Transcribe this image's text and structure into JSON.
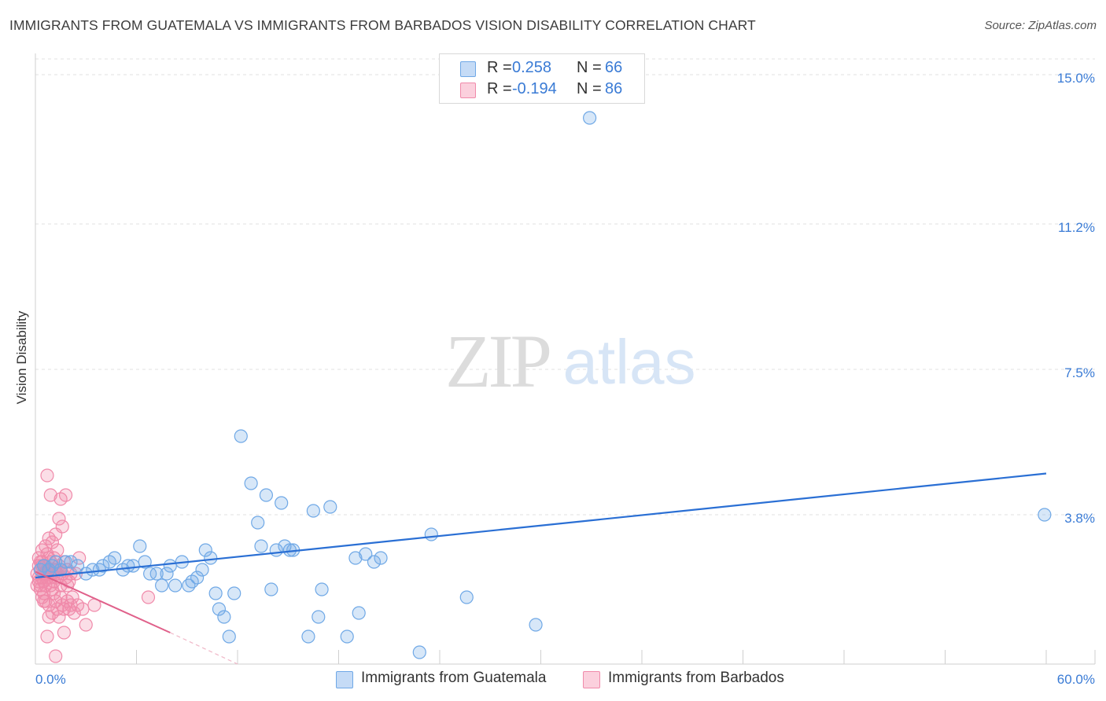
{
  "title": "IMMIGRANTS FROM GUATEMALA VS IMMIGRANTS FROM BARBADOS VISION DISABILITY CORRELATION CHART",
  "source": "Source: ZipAtlas.com",
  "watermark": {
    "zip": "ZIP",
    "atlas": "atlas"
  },
  "legend": {
    "r_label": "R =",
    "n_label": "N =",
    "series": [
      {
        "name": "Immigrants from Guatemala",
        "r": "0.258",
        "n": "66"
      },
      {
        "name": "Immigrants from Barbados",
        "r": "-0.194",
        "n": "86"
      }
    ]
  },
  "chart_data": {
    "type": "scatter",
    "title": "IMMIGRANTS FROM GUATEMALA VS IMMIGRANTS FROM BARBADOS VISION DISABILITY CORRELATION CHART",
    "xlabel": "",
    "ylabel": "Vision Disability",
    "xlim": [
      0,
      60
    ],
    "ylim": [
      0,
      15.4
    ],
    "x_tick_labels": [
      "0.0%",
      "60.0%"
    ],
    "y_ticks": [
      3.8,
      7.5,
      11.2,
      15.0
    ],
    "y_tick_labels": [
      "3.8%",
      "7.5%",
      "11.2%",
      "15.0%"
    ],
    "colors": {
      "guatemala": "#6fa8e6",
      "guatemala_line": "#2a6fd4",
      "barbados": "#f08aaa",
      "barbados_line": "#e0608a",
      "axis_text": "#3a7bd5"
    },
    "series": [
      {
        "name": "Immigrants from Guatemala",
        "trend": {
          "x": [
            0,
            60
          ],
          "y": [
            2.2,
            4.85
          ]
        },
        "points": [
          [
            0.5,
            2.5
          ],
          [
            0.8,
            2.4
          ],
          [
            1.0,
            2.5
          ],
          [
            1.5,
            2.4
          ],
          [
            1.8,
            2.6
          ],
          [
            2.1,
            2.6
          ],
          [
            2.5,
            2.5
          ],
          [
            3.0,
            2.3
          ],
          [
            3.4,
            2.4
          ],
          [
            4.0,
            2.5
          ],
          [
            4.4,
            2.6
          ],
          [
            4.7,
            2.7
          ],
          [
            5.2,
            2.4
          ],
          [
            5.5,
            2.5
          ],
          [
            5.8,
            2.5
          ],
          [
            6.2,
            3.0
          ],
          [
            6.5,
            2.6
          ],
          [
            6.8,
            2.3
          ],
          [
            7.2,
            2.3
          ],
          [
            7.5,
            2.0
          ],
          [
            7.8,
            2.3
          ],
          [
            8.0,
            2.5
          ],
          [
            8.3,
            2.0
          ],
          [
            8.7,
            2.6
          ],
          [
            9.1,
            2.0
          ],
          [
            9.3,
            2.1
          ],
          [
            9.6,
            2.2
          ],
          [
            9.9,
            2.4
          ],
          [
            10.1,
            2.9
          ],
          [
            10.4,
            2.7
          ],
          [
            10.7,
            1.8
          ],
          [
            10.9,
            1.4
          ],
          [
            11.2,
            1.2
          ],
          [
            11.5,
            0.7
          ],
          [
            11.8,
            1.8
          ],
          [
            12.2,
            5.8
          ],
          [
            12.8,
            4.6
          ],
          [
            13.2,
            3.6
          ],
          [
            13.4,
            3.0
          ],
          [
            13.7,
            4.3
          ],
          [
            14.0,
            1.9
          ],
          [
            14.3,
            2.9
          ],
          [
            14.6,
            4.1
          ],
          [
            14.8,
            3.0
          ],
          [
            15.1,
            2.9
          ],
          [
            15.3,
            2.9
          ],
          [
            16.2,
            0.7
          ],
          [
            16.5,
            3.9
          ],
          [
            16.8,
            1.2
          ],
          [
            17.0,
            1.9
          ],
          [
            17.5,
            4.0
          ],
          [
            18.5,
            0.7
          ],
          [
            19.0,
            2.7
          ],
          [
            19.2,
            1.3
          ],
          [
            19.6,
            2.8
          ],
          [
            20.1,
            2.6
          ],
          [
            20.5,
            2.7
          ],
          [
            22.8,
            0.3
          ],
          [
            23.5,
            3.3
          ],
          [
            25.6,
            1.7
          ],
          [
            29.7,
            1.0
          ],
          [
            32.9,
            13.9
          ],
          [
            59.9,
            3.8
          ],
          [
            0.3,
            2.4
          ],
          [
            1.2,
            2.6
          ],
          [
            3.8,
            2.4
          ]
        ]
      },
      {
        "name": "Immigrants from Barbados",
        "trend": {
          "x": [
            0,
            8
          ],
          "y": [
            2.35,
            0.8
          ]
        },
        "trend_dashed_to": {
          "x": 12,
          "y": 0.0
        },
        "points": [
          [
            0.1,
            2.3
          ],
          [
            0.2,
            2.5
          ],
          [
            0.2,
            2.1
          ],
          [
            0.3,
            2.4
          ],
          [
            0.3,
            2.0
          ],
          [
            0.4,
            2.2
          ],
          [
            0.4,
            2.6
          ],
          [
            0.5,
            2.3
          ],
          [
            0.5,
            1.8
          ],
          [
            0.6,
            2.5
          ],
          [
            0.6,
            3.0
          ],
          [
            0.6,
            1.6
          ],
          [
            0.7,
            2.2
          ],
          [
            0.7,
            2.8
          ],
          [
            0.7,
            4.8
          ],
          [
            0.8,
            2.4
          ],
          [
            0.8,
            1.5
          ],
          [
            0.8,
            3.2
          ],
          [
            0.9,
            2.0
          ],
          [
            0.9,
            2.6
          ],
          [
            0.9,
            4.3
          ],
          [
            1.0,
            2.3
          ],
          [
            1.0,
            1.3
          ],
          [
            1.0,
            3.1
          ],
          [
            1.1,
            2.1
          ],
          [
            1.1,
            1.8
          ],
          [
            1.1,
            2.7
          ],
          [
            1.2,
            2.4
          ],
          [
            1.2,
            1.6
          ],
          [
            1.2,
            0.2
          ],
          [
            1.3,
            2.2
          ],
          [
            1.3,
            2.9
          ],
          [
            1.3,
            1.4
          ],
          [
            1.4,
            2.5
          ],
          [
            1.4,
            1.2
          ],
          [
            1.4,
            3.7
          ],
          [
            1.5,
            2.0
          ],
          [
            1.5,
            1.7
          ],
          [
            1.5,
            4.2
          ],
          [
            1.6,
            2.3
          ],
          [
            1.6,
            1.5
          ],
          [
            1.6,
            3.5
          ],
          [
            1.7,
            2.6
          ],
          [
            1.7,
            1.4
          ],
          [
            1.7,
            0.8
          ],
          [
            1.8,
            2.2
          ],
          [
            1.8,
            4.3
          ],
          [
            1.9,
            2.4
          ],
          [
            1.9,
            1.6
          ],
          [
            2.0,
            2.1
          ],
          [
            2.0,
            1.4
          ],
          [
            2.1,
            2.3
          ],
          [
            2.1,
            1.5
          ],
          [
            2.2,
            1.7
          ],
          [
            2.3,
            1.3
          ],
          [
            2.5,
            1.5
          ],
          [
            2.6,
            2.7
          ],
          [
            2.8,
            1.4
          ],
          [
            3.0,
            1.0
          ],
          [
            3.5,
            1.5
          ],
          [
            6.7,
            1.7
          ],
          [
            0.2,
            2.7
          ],
          [
            0.3,
            1.9
          ],
          [
            0.4,
            2.9
          ],
          [
            0.5,
            1.6
          ],
          [
            0.6,
            2.0
          ],
          [
            0.7,
            0.7
          ],
          [
            0.8,
            1.2
          ],
          [
            0.9,
            2.3
          ],
          [
            1.0,
            1.9
          ],
          [
            1.1,
            2.4
          ],
          [
            0.4,
            2.5
          ],
          [
            0.6,
            2.3
          ],
          [
            0.2,
            2.2
          ],
          [
            0.3,
            2.6
          ],
          [
            0.5,
            2.1
          ],
          [
            0.7,
            2.4
          ],
          [
            0.9,
            2.2
          ],
          [
            1.3,
            2.3
          ],
          [
            1.5,
            2.4
          ],
          [
            0.1,
            2.0
          ],
          [
            0.8,
            2.7
          ],
          [
            1.9,
            2.0
          ],
          [
            2.4,
            2.3
          ],
          [
            1.2,
            3.3
          ],
          [
            0.4,
            1.7
          ]
        ]
      }
    ]
  }
}
